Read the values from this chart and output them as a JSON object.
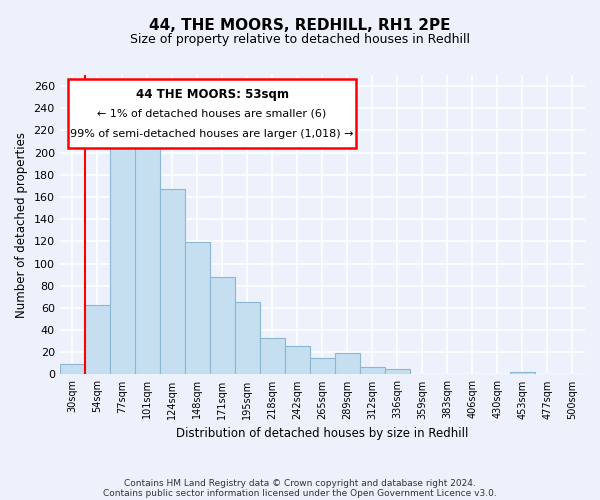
{
  "title": "44, THE MOORS, REDHILL, RH1 2PE",
  "subtitle": "Size of property relative to detached houses in Redhill",
  "xlabel": "Distribution of detached houses by size in Redhill",
  "ylabel": "Number of detached properties",
  "bar_color": "#c5dff0",
  "bar_edge_color": "#8ab8d4",
  "categories": [
    "30sqm",
    "54sqm",
    "77sqm",
    "101sqm",
    "124sqm",
    "148sqm",
    "171sqm",
    "195sqm",
    "218sqm",
    "242sqm",
    "265sqm",
    "289sqm",
    "312sqm",
    "336sqm",
    "359sqm",
    "383sqm",
    "406sqm",
    "430sqm",
    "453sqm",
    "477sqm",
    "500sqm"
  ],
  "values": [
    9,
    63,
    205,
    210,
    167,
    119,
    88,
    65,
    33,
    26,
    15,
    19,
    7,
    5,
    0,
    0,
    0,
    0,
    2,
    0,
    0
  ],
  "ylim": [
    0,
    270
  ],
  "yticks": [
    0,
    20,
    40,
    60,
    80,
    100,
    120,
    140,
    160,
    180,
    200,
    220,
    240,
    260
  ],
  "annotation_title": "44 THE MOORS: 53sqm",
  "annotation_line1": "← 1% of detached houses are smaller (6)",
  "annotation_line2": "99% of semi-detached houses are larger (1,018) →",
  "red_line_x": 0.5,
  "footer1": "Contains HM Land Registry data © Crown copyright and database right 2024.",
  "footer2": "Contains public sector information licensed under the Open Government Licence v3.0.",
  "background_color": "#edf1fb"
}
